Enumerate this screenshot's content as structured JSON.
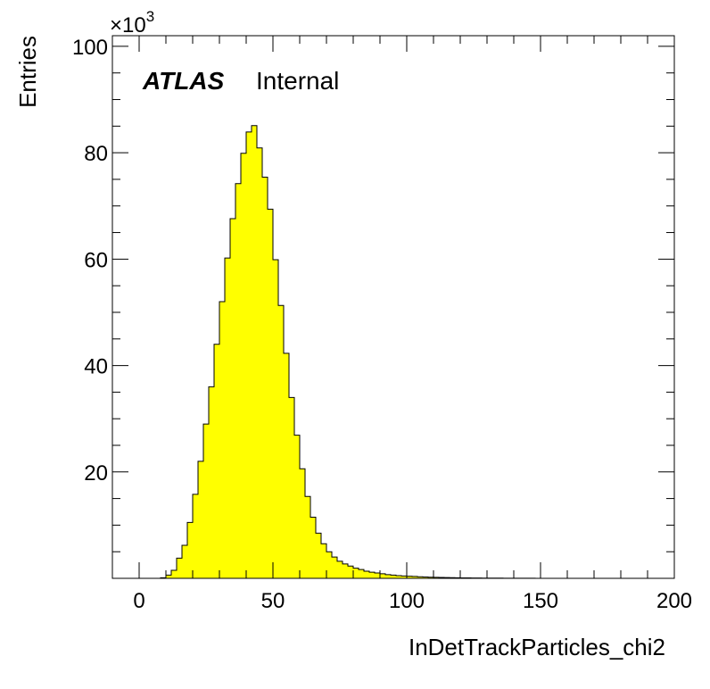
{
  "chart_data": {
    "type": "bar",
    "histogram": true,
    "xlabel": "InDetTrackParticles_chi2",
    "ylabel": "Entries",
    "y_multiplier": {
      "base": "×10",
      "exponent": "3"
    },
    "xlim": [
      -10,
      200
    ],
    "ylim": [
      0,
      102000
    ],
    "x_ticks": [
      "0",
      "50",
      "100",
      "150",
      "200"
    ],
    "x_tick_values": [
      0,
      50,
      100,
      150,
      200
    ],
    "y_ticks": [
      "20",
      "40",
      "60",
      "80",
      "100"
    ],
    "y_tick_values": [
      20000,
      40000,
      60000,
      80000,
      100000
    ],
    "bin_edges_start": 0,
    "bin_width": 2,
    "values": [
      0,
      0,
      0,
      0,
      100,
      600,
      1500,
      3800,
      6200,
      10500,
      15800,
      22000,
      29000,
      36000,
      44000,
      52000,
      60200,
      67600,
      74200,
      79900,
      83900,
      85100,
      80900,
      75400,
      69400,
      59900,
      51300,
      42300,
      34000,
      26900,
      20600,
      15400,
      11500,
      8500,
      6500,
      5000,
      4000,
      3200,
      2700,
      2300,
      1900,
      1650,
      1350,
      1150,
      1000,
      850,
      700,
      600,
      500,
      450,
      400,
      350,
      300,
      250,
      220,
      190,
      160,
      140,
      120,
      100,
      90,
      80,
      70,
      60,
      50,
      45,
      40,
      35,
      30,
      25,
      20,
      18,
      15,
      12,
      10,
      8,
      6,
      5,
      4,
      3,
      2,
      2,
      1,
      1,
      1,
      1,
      0,
      0,
      0,
      0,
      0,
      0,
      0,
      0,
      0,
      0,
      0,
      0,
      0,
      0
    ],
    "fill_color": "#ffff00",
    "line_color": "#000000",
    "grid": false,
    "annotations": {
      "experiment": "ATLAS",
      "status": "Internal"
    }
  }
}
